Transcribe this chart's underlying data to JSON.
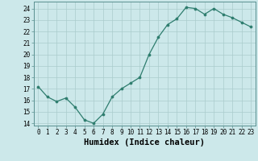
{
  "x": [
    0,
    1,
    2,
    3,
    4,
    5,
    6,
    7,
    8,
    9,
    10,
    11,
    12,
    13,
    14,
    15,
    16,
    17,
    18,
    19,
    20,
    21,
    22,
    23
  ],
  "y": [
    17.2,
    16.3,
    15.9,
    16.2,
    15.4,
    14.3,
    14.0,
    14.8,
    16.3,
    17.0,
    17.5,
    18.0,
    20.0,
    21.5,
    22.6,
    23.1,
    24.1,
    24.0,
    23.5,
    24.0,
    23.5,
    23.2,
    22.8,
    22.4
  ],
  "xlabel": "Humidex (Indice chaleur)",
  "ylim": [
    13.8,
    24.6
  ],
  "xlim": [
    -0.5,
    23.5
  ],
  "yticks": [
    14,
    15,
    16,
    17,
    18,
    19,
    20,
    21,
    22,
    23,
    24
  ],
  "xticks": [
    0,
    1,
    2,
    3,
    4,
    5,
    6,
    7,
    8,
    9,
    10,
    11,
    12,
    13,
    14,
    15,
    16,
    17,
    18,
    19,
    20,
    21,
    22,
    23
  ],
  "line_color": "#2e7d6e",
  "marker_color": "#2e7d6e",
  "bg_color": "#cce8ea",
  "grid_color": "#aacccc",
  "tick_label_fontsize": 5.5,
  "xlabel_fontsize": 7.5
}
